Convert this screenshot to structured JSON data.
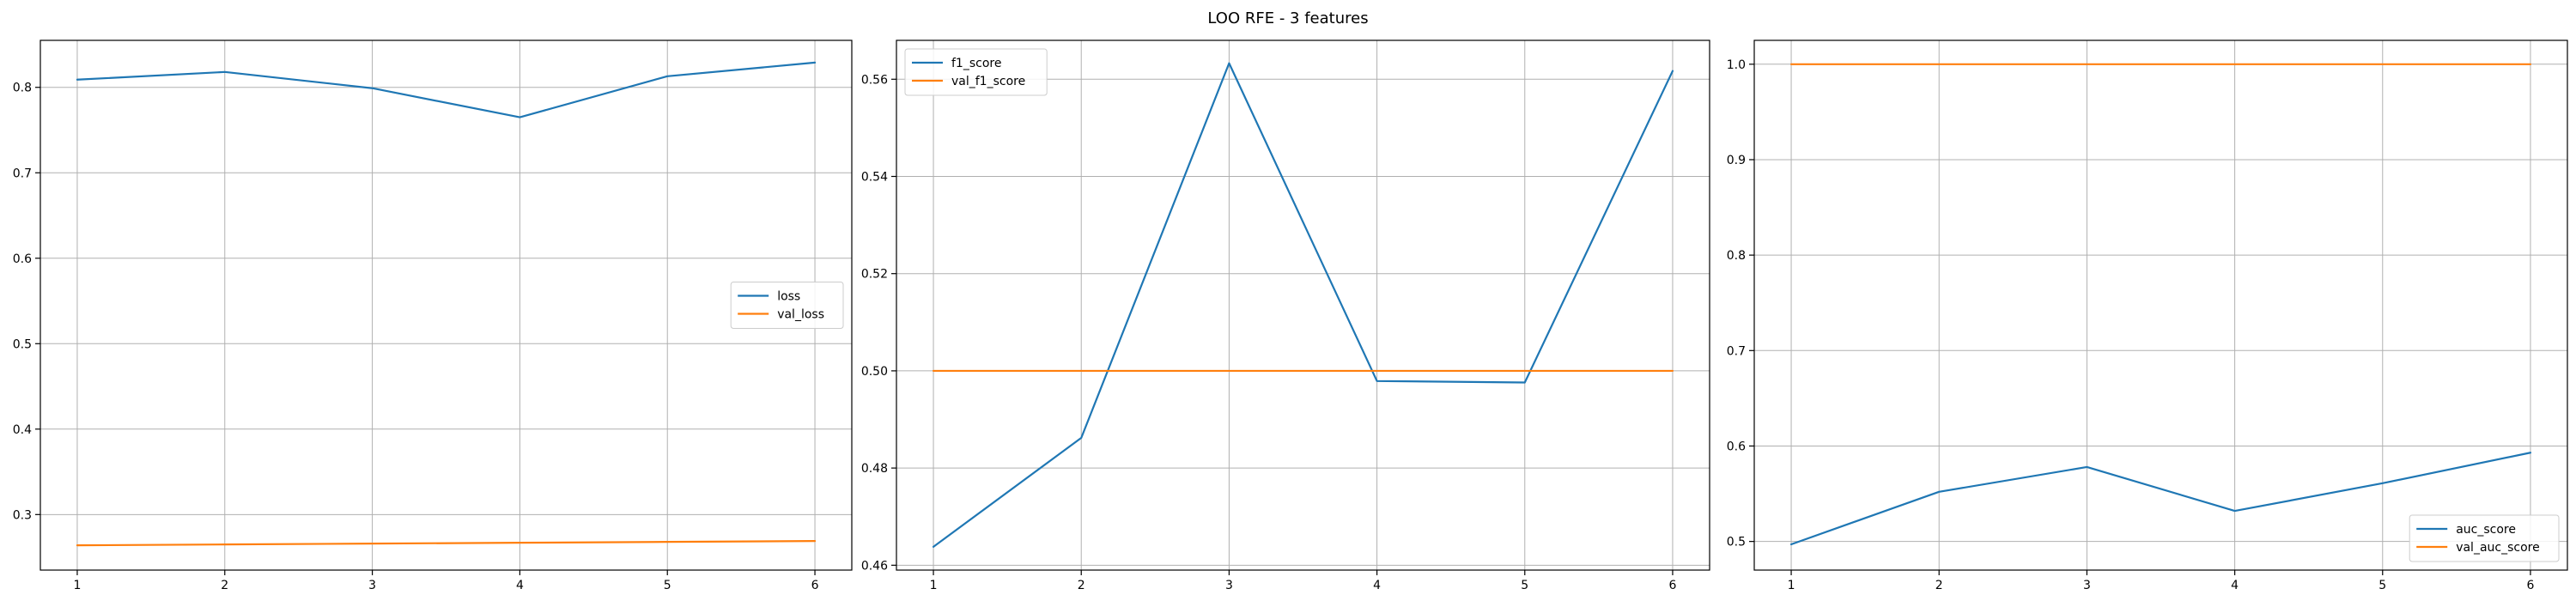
{
  "figure": {
    "suptitle": "LOO RFE - 3 features"
  },
  "chart_data": [
    {
      "type": "line",
      "title": "",
      "xlabel": "",
      "ylabel": "",
      "x": [
        1,
        2,
        3,
        4,
        5,
        6
      ],
      "xticks": [
        1,
        2,
        3,
        4,
        5,
        6
      ],
      "xlim": [
        0.75,
        6.25
      ],
      "ylim": [
        0.235,
        0.855
      ],
      "yticks": [
        0.3,
        0.4,
        0.5,
        0.6,
        0.7,
        0.8
      ],
      "ytick_labels": [
        "0.3",
        "0.4",
        "0.5",
        "0.6",
        "0.7",
        "0.8"
      ],
      "grid": true,
      "legend_position": "center-right",
      "series": [
        {
          "name": "loss",
          "color": "#1f77b4",
          "values": [
            0.809,
            0.818,
            0.799,
            0.765,
            0.813,
            0.829
          ]
        },
        {
          "name": "val_loss",
          "color": "#ff7f0e",
          "values": [
            0.264,
            0.265,
            0.266,
            0.267,
            0.268,
            0.269
          ]
        }
      ]
    },
    {
      "type": "line",
      "title": "",
      "xlabel": "",
      "ylabel": "",
      "x": [
        1,
        2,
        3,
        4,
        5,
        6
      ],
      "xticks": [
        1,
        2,
        3,
        4,
        5,
        6
      ],
      "xlim": [
        0.75,
        6.25
      ],
      "ylim": [
        0.459,
        0.568
      ],
      "yticks": [
        0.46,
        0.48,
        0.5,
        0.52,
        0.54,
        0.56
      ],
      "ytick_labels": [
        "0.46",
        "0.48",
        "0.50",
        "0.52",
        "0.54",
        "0.56"
      ],
      "grid": true,
      "legend_position": "top-left",
      "series": [
        {
          "name": "f1_score",
          "color": "#1f77b4",
          "values": [
            0.4638,
            0.4862,
            0.5633,
            0.4979,
            0.4976,
            0.5617
          ]
        },
        {
          "name": "val_f1_score",
          "color": "#ff7f0e",
          "values": [
            0.5,
            0.5,
            0.5,
            0.5,
            0.5,
            0.5
          ]
        }
      ]
    },
    {
      "type": "line",
      "title": "",
      "xlabel": "",
      "ylabel": "",
      "x": [
        1,
        2,
        3,
        4,
        5,
        6
      ],
      "xticks": [
        1,
        2,
        3,
        4,
        5,
        6
      ],
      "xlim": [
        0.75,
        6.25
      ],
      "ylim": [
        0.47,
        1.025
      ],
      "yticks": [
        0.5,
        0.6,
        0.7,
        0.8,
        0.9,
        1.0
      ],
      "ytick_labels": [
        "0.5",
        "0.6",
        "0.7",
        "0.8",
        "0.9",
        "1.0"
      ],
      "grid": true,
      "legend_position": "bottom-right",
      "series": [
        {
          "name": "auc_score",
          "color": "#1f77b4",
          "values": [
            0.497,
            0.552,
            0.578,
            0.532,
            0.561,
            0.593
          ]
        },
        {
          "name": "val_auc_score",
          "color": "#ff7f0e",
          "values": [
            1.0,
            1.0,
            1.0,
            1.0,
            1.0,
            1.0
          ]
        }
      ]
    }
  ]
}
